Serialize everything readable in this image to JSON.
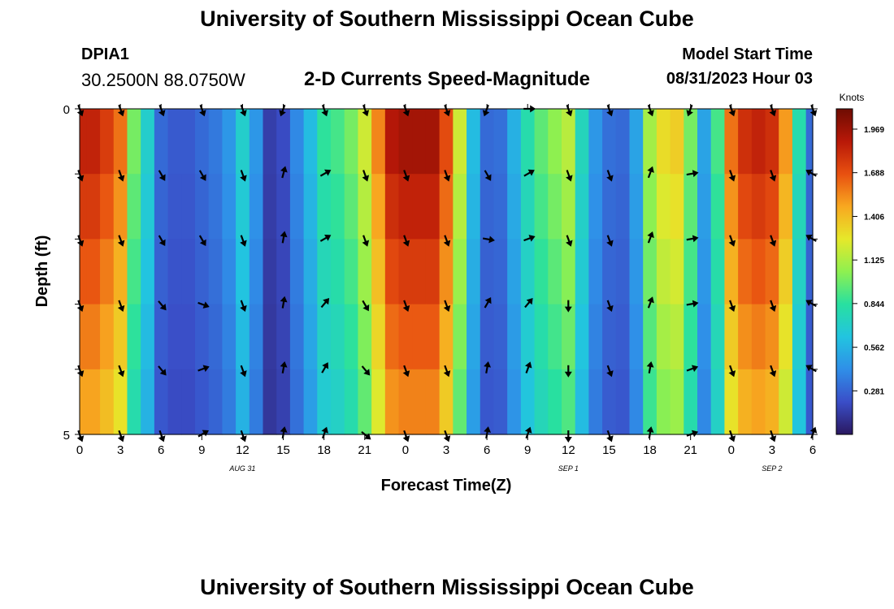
{
  "header": {
    "title": "University of Southern Mississippi Ocean Cube",
    "station_id": "DPIA1",
    "coordinates": "30.2500N  88.0750W",
    "chart_title": "2-D Currents Speed-Magnitude",
    "model_start_label": "Model Start Time",
    "model_start_value": "08/31/2023 Hour 03"
  },
  "footer": {
    "title": "University of Southern Mississippi Ocean Cube"
  },
  "chart_data": {
    "type": "heatmap",
    "title": "2-D Currents Speed-Magnitude",
    "xlabel": "Forecast Time(Z)",
    "ylabel": "Depth (ft)",
    "xlim": [
      0,
      54
    ],
    "ylim": [
      0,
      5
    ],
    "x_tick_labels": [
      "0",
      "3",
      "6",
      "9",
      "12",
      "15",
      "18",
      "21",
      "0",
      "3",
      "6",
      "9",
      "12",
      "15",
      "18",
      "21",
      "0",
      "3",
      "6"
    ],
    "y_tick_labels": [
      "0",
      "5"
    ],
    "date_labels": [
      {
        "hour": 12,
        "text": "AUG 31"
      },
      {
        "hour": 36,
        "text": "SEP 1"
      },
      {
        "hour": 51,
        "text": "SEP 2"
      }
    ],
    "colorbar": {
      "unit": "Knots",
      "min": 0,
      "max": 2.1,
      "ticks": [
        "1.969",
        "1.688",
        "1.406",
        "1.125",
        "0.844",
        "0.562",
        "0.281"
      ],
      "tick_values": [
        1.969,
        1.688,
        1.406,
        1.125,
        0.844,
        0.562,
        0.281
      ],
      "colors": [
        "#2a1860",
        "#3a4ec8",
        "#2f8fe8",
        "#22c4e0",
        "#28e0a0",
        "#8ef050",
        "#e6e82a",
        "#f8a820",
        "#e85010",
        "#b81808",
        "#6e0c02"
      ]
    },
    "depth_layers": [
      0.5,
      1.5,
      2.5,
      3.5,
      4.5
    ],
    "hours": [
      0,
      1,
      2,
      3,
      4,
      5,
      6,
      7,
      8,
      9,
      10,
      11,
      12,
      13,
      14,
      15,
      16,
      17,
      18,
      19,
      20,
      21,
      22,
      23,
      24,
      25,
      26,
      27,
      28,
      29,
      30,
      31,
      32,
      33,
      34,
      35,
      36,
      37,
      38,
      39,
      40,
      41,
      42,
      43,
      44,
      45,
      46,
      47,
      48,
      49,
      50,
      51,
      52,
      53,
      54
    ],
    "surface_speed_knots": [
      1.85,
      1.85,
      1.75,
      1.6,
      1.0,
      0.7,
      0.3,
      0.25,
      0.25,
      0.3,
      0.35,
      0.45,
      0.7,
      0.45,
      0.15,
      0.2,
      0.4,
      0.6,
      0.85,
      0.9,
      1.0,
      1.2,
      1.55,
      1.9,
      1.95,
      1.95,
      1.95,
      1.7,
      1.2,
      0.6,
      0.3,
      0.32,
      0.55,
      0.8,
      0.95,
      1.05,
      1.15,
      0.75,
      0.45,
      0.32,
      0.3,
      0.5,
      1.1,
      1.3,
      1.35,
      1.0,
      0.5,
      0.9,
      1.6,
      1.8,
      1.85,
      1.8,
      1.5,
      0.8,
      0.3
    ],
    "depth_factor": [
      1.0,
      0.95,
      0.9,
      0.85,
      0.8
    ],
    "vector_hours": [
      0,
      3,
      6,
      9,
      12,
      15,
      18,
      21,
      24,
      27,
      30,
      33,
      36,
      39,
      42,
      45,
      48,
      51,
      54
    ],
    "vector_directions_deg": [
      [
        160,
        160,
        160,
        160,
        160,
        200,
        160,
        160,
        160,
        160,
        200,
        90,
        160,
        160,
        160,
        200,
        160,
        160,
        160
      ],
      [
        160,
        160,
        150,
        150,
        160,
        15,
        60,
        160,
        160,
        160,
        150,
        60,
        160,
        160,
        20,
        80,
        160,
        160,
        300
      ],
      [
        160,
        160,
        150,
        150,
        160,
        10,
        60,
        160,
        160,
        160,
        100,
        70,
        160,
        160,
        20,
        80,
        160,
        160,
        300
      ],
      [
        160,
        160,
        140,
        110,
        160,
        10,
        40,
        150,
        160,
        160,
        30,
        40,
        180,
        160,
        20,
        80,
        160,
        160,
        300
      ],
      [
        160,
        160,
        140,
        70,
        160,
        10,
        30,
        140,
        160,
        160,
        10,
        20,
        180,
        160,
        10,
        70,
        160,
        160,
        300
      ],
      [
        160,
        160,
        160,
        60,
        160,
        10,
        20,
        130,
        160,
        160,
        10,
        20,
        180,
        160,
        10,
        70,
        160,
        160,
        20
      ]
    ],
    "vector_depths": [
      0,
      1,
      2,
      3,
      4,
      5
    ]
  }
}
